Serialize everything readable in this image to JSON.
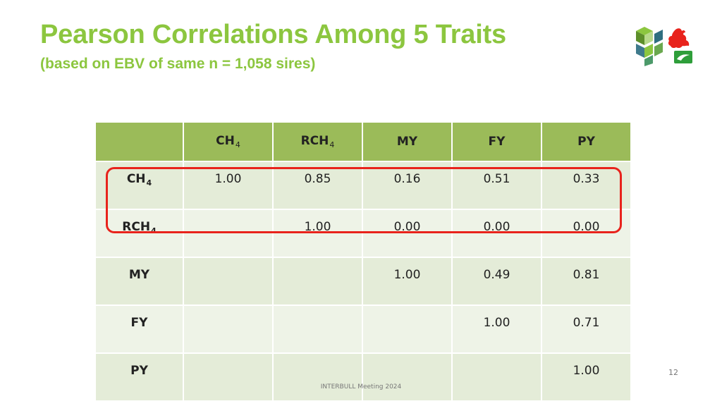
{
  "slide": {
    "title": "Pearson Correlations Among 5 Traits",
    "subtitle": "(based on EBV of same n = 1,058 sires)",
    "page_number": "12",
    "footer": "INTERBULL Meeting 2024"
  },
  "colors": {
    "title": "#8cc63f",
    "header_bg": "#9bbb59",
    "cell_bg": "#e4ecd8",
    "cell_bg_alt": "#eef3e7",
    "highlight": "#e8231c"
  },
  "table": {
    "headers": [
      {
        "main": "",
        "sub": ""
      },
      {
        "main": "CH",
        "sub": "4"
      },
      {
        "main": "RCH",
        "sub": "4"
      },
      {
        "main": "MY",
        "sub": ""
      },
      {
        "main": "FY",
        "sub": ""
      },
      {
        "main": "PY",
        "sub": ""
      }
    ],
    "rows": [
      {
        "label": "CH",
        "sub": "4",
        "cells": [
          "1.00",
          "0.85",
          "0.16",
          "0.51",
          "0.33"
        ]
      },
      {
        "label": "RCH",
        "sub": "4",
        "cells": [
          "",
          "1.00",
          "0.00",
          "0.00",
          "0.00"
        ]
      },
      {
        "label": "MY",
        "sub": "",
        "cells": [
          "",
          "",
          "1.00",
          "0.49",
          "0.81"
        ]
      },
      {
        "label": "FY",
        "sub": "",
        "cells": [
          "",
          "",
          "",
          "1.00",
          "0.71"
        ]
      },
      {
        "label": "PY",
        "sub": "",
        "cells": [
          "",
          "",
          "",
          "",
          "1.00"
        ]
      }
    ],
    "highlighted_rows": [
      "CH4",
      "RCH4"
    ]
  },
  "logo": {
    "icon": "walloon-rooster-and-cube-logo-icon"
  }
}
